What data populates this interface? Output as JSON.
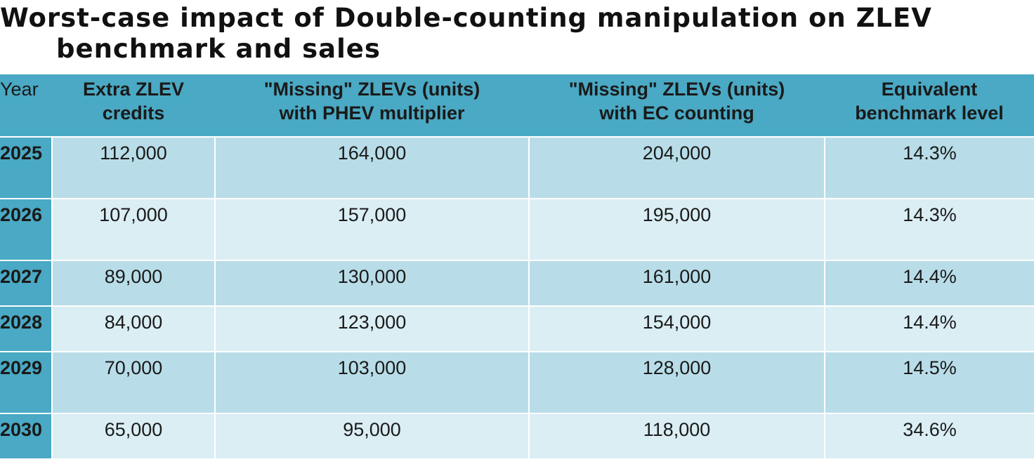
{
  "title": {
    "line1": "Worst-case impact of Double-counting manipulation on ZLEV",
    "line2": "benchmark and sales"
  },
  "table": {
    "headers": [
      [
        "Year"
      ],
      [
        "Extra ZLEV",
        "credits"
      ],
      [
        "\"Missing\" ZLEVs (units)",
        "with PHEV multiplier"
      ],
      [
        "\"Missing\" ZLEVs (units)",
        "with EC counting"
      ],
      [
        "Equivalent",
        "benchmark level"
      ]
    ],
    "rows": [
      [
        "2025",
        "112,000",
        "164,000",
        "204,000",
        "14.3%"
      ],
      [
        "2026",
        "107,000",
        "157,000",
        "195,000",
        "14.3%"
      ],
      [
        "2027",
        "89,000",
        "130,000",
        "161,000",
        "14.4%"
      ],
      [
        "2028",
        "84,000",
        "123,000",
        "154,000",
        "14.4%"
      ],
      [
        "2029",
        "70,000",
        "103,000",
        "128,000",
        "14.5%"
      ],
      [
        "2030",
        "65,000",
        "95,000",
        "118,000",
        "34.6%"
      ]
    ]
  },
  "colors": {
    "header_bg": "#4aa9c4",
    "row_dark": "#b8dde8",
    "row_light": "#daeef4"
  }
}
